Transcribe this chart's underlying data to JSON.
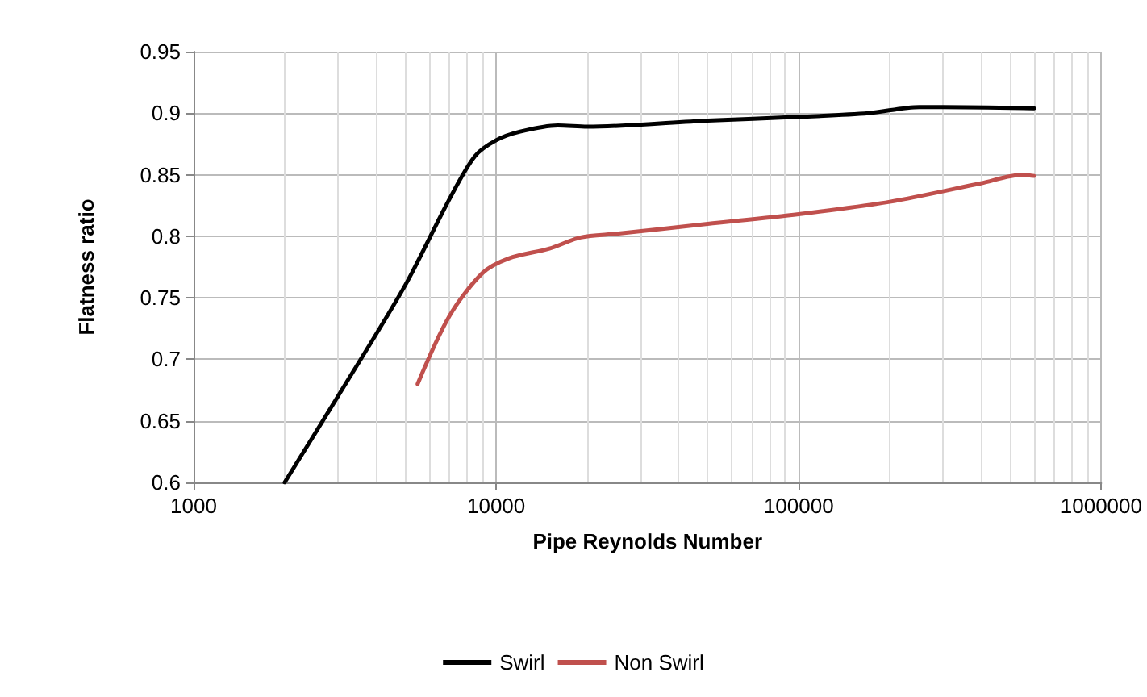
{
  "chart_data": {
    "type": "line",
    "xlabel": "Pipe Reynolds Number",
    "ylabel": "Flatness ratio",
    "log": "x",
    "xlim": [
      1000,
      1000000
    ],
    "xticks": [
      1000,
      10000,
      100000,
      1000000
    ],
    "ylim": [
      0.6,
      0.95
    ],
    "yticks": [
      0.6,
      0.65,
      0.7,
      0.75,
      0.8,
      0.85,
      0.9,
      0.95
    ],
    "grid": true,
    "legend": "bottom",
    "marker": "none",
    "line_style": "solid",
    "series": [
      {
        "name": "Swirl",
        "color": "#000000",
        "x": [
          2000,
          3000,
          5000,
          7000,
          8500,
          10000,
          12000,
          16000,
          20000,
          50000,
          100000,
          170000,
          250000,
          300000,
          600000
        ],
        "values": [
          0.6,
          0.67,
          0.76,
          0.83,
          0.865,
          0.878,
          0.885,
          0.89,
          0.889,
          0.894,
          0.897,
          0.9,
          0.905,
          0.905,
          0.904
        ]
      },
      {
        "name": "Non Swirl",
        "color": "#c0504d",
        "x": [
          5500,
          7000,
          9000,
          11000,
          15000,
          19000,
          25000,
          50000,
          100000,
          200000,
          400000,
          550000,
          600000
        ],
        "values": [
          0.68,
          0.735,
          0.77,
          0.782,
          0.79,
          0.799,
          0.802,
          0.81,
          0.818,
          0.828,
          0.843,
          0.85,
          0.849
        ]
      }
    ]
  }
}
